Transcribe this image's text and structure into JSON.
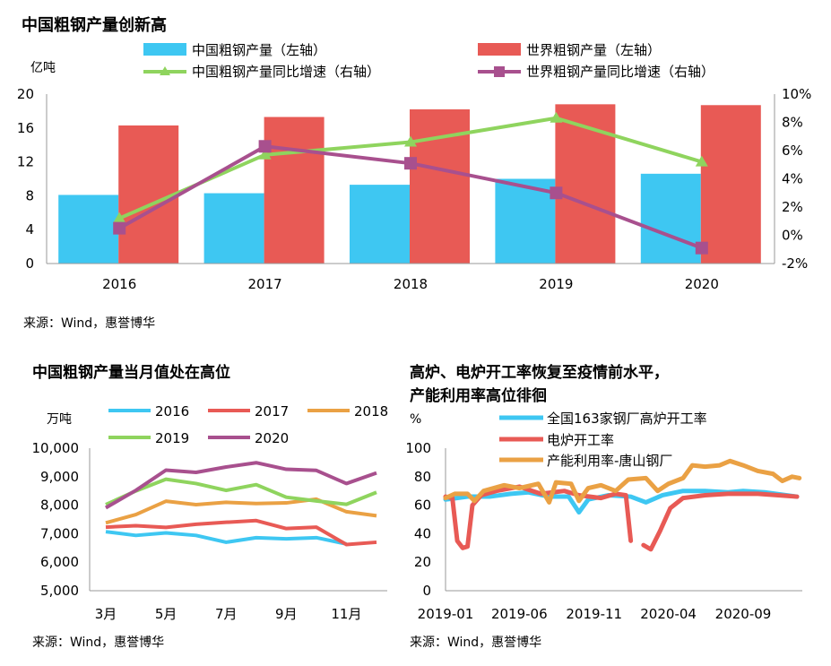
{
  "panel1": {
    "title": "中国粗钢产量创新高",
    "source": "来源：Wind，惠誉博华",
    "chart_data": {
      "type": "bar",
      "categories": [
        "2016",
        "2017",
        "2018",
        "2019",
        "2020"
      ],
      "ylabel": "亿吨",
      "ylim": [
        0,
        20
      ],
      "yticks": [
        "0",
        "4",
        "8",
        "12",
        "16",
        "20"
      ],
      "y2lim": [
        -2,
        10
      ],
      "y2ticks": [
        "-2%",
        "0%",
        "2%",
        "4%",
        "6%",
        "8%",
        "10%"
      ],
      "grid": false,
      "legend_position": "top",
      "series": [
        {
          "name": "中国粗钢产量（左轴）",
          "type": "bar",
          "axis": "left",
          "color": "#3ec7f2",
          "values": [
            8.1,
            8.3,
            9.3,
            10.0,
            10.6
          ]
        },
        {
          "name": "世界粗钢产量（左轴）",
          "type": "bar",
          "axis": "left",
          "color": "#e85a55",
          "values": [
            16.3,
            17.3,
            18.2,
            18.8,
            18.7
          ]
        },
        {
          "name": "中国粗钢产量同比增速（右轴）",
          "type": "line",
          "axis": "right",
          "color": "#8fd45e",
          "marker": "triangle",
          "values": [
            1.2,
            5.7,
            6.6,
            8.3,
            5.2
          ]
        },
        {
          "name": "世界粗钢产量同比增速（右轴）",
          "type": "line",
          "axis": "right",
          "color": "#a8508e",
          "marker": "square",
          "values": [
            0.5,
            6.3,
            5.1,
            3.0,
            -0.9
          ]
        }
      ]
    }
  },
  "panel2": {
    "title": "中国粗钢产量当月值处在高位",
    "source": "来源：Wind，惠誉博华",
    "chart_data": {
      "type": "line",
      "x": [
        3,
        4,
        5,
        6,
        7,
        8,
        9,
        10,
        11,
        12
      ],
      "xticks": [
        "3月",
        "5月",
        "7月",
        "9月",
        "11月"
      ],
      "ylabel": "万吨",
      "ylim": [
        5000,
        10000
      ],
      "yticks": [
        "5,000",
        "6,000",
        "7,000",
        "8,000",
        "9,000",
        "10,000"
      ],
      "grid": false,
      "legend_position": "top",
      "series": [
        {
          "name": "2016",
          "color": "#3ec7f2",
          "values": [
            7070,
            6940,
            7030,
            6940,
            6700,
            6860,
            6820,
            6860,
            6640,
            null
          ]
        },
        {
          "name": "2017",
          "color": "#e85a55",
          "values": [
            7230,
            7280,
            7220,
            7330,
            7400,
            7460,
            7180,
            7230,
            6620,
            6700
          ]
        },
        {
          "name": "2018",
          "color": "#eaa144",
          "values": [
            7380,
            7670,
            8140,
            8020,
            8100,
            8060,
            8080,
            8210,
            7770,
            7630
          ]
        },
        {
          "name": "2019",
          "color": "#8fd45e",
          "values": [
            8020,
            8500,
            8910,
            8760,
            8520,
            8720,
            8280,
            8150,
            8030,
            8450
          ]
        },
        {
          "name": "2020",
          "color": "#a8508e",
          "values": [
            7910,
            8520,
            9230,
            9150,
            9340,
            9490,
            9260,
            9220,
            8760,
            9130
          ]
        }
      ]
    }
  },
  "panel3": {
    "title_line1": "高炉、电炉开工率恢复至疫情前水平，",
    "title_line2": "产能利用率高位徘徊",
    "source": "来源：Wind，惠誉博华",
    "chart_data": {
      "type": "line",
      "x_start": "2019-01",
      "xticks": [
        "2019-01",
        "2019-06",
        "2019-11",
        "2020-04",
        "2020-09"
      ],
      "ylabel": "%",
      "ylim": [
        0,
        100
      ],
      "yticks": [
        "0",
        "20",
        "40",
        "60",
        "80",
        "100"
      ],
      "grid": false,
      "legend_position": "top",
      "series": [
        {
          "name": "全国163家钢厂高炉开工率",
          "color": "#3ec7f2",
          "points": [
            [
              "2019-01-01",
              64
            ],
            [
              "2019-02-15",
              66
            ],
            [
              "2019-04-01",
              66
            ],
            [
              "2019-05-15",
              68
            ],
            [
              "2019-06-20",
              69
            ],
            [
              "2019-08-01",
              66
            ],
            [
              "2019-09-10",
              66
            ],
            [
              "2019-10-01",
              55
            ],
            [
              "2019-10-20",
              64
            ],
            [
              "2019-12-01",
              67
            ],
            [
              "2020-01-15",
              66
            ],
            [
              "2020-02-15",
              62
            ],
            [
              "2020-03-20",
              67
            ],
            [
              "2020-05-01",
              70
            ],
            [
              "2020-06-15",
              70
            ],
            [
              "2020-08-01",
              69
            ],
            [
              "2020-09-01",
              70
            ],
            [
              "2020-10-15",
              69
            ],
            [
              "2020-12-20",
              66
            ]
          ]
        },
        {
          "name": "电炉开工率",
          "color": "#e85a55",
          "points": [
            [
              "2019-01-01",
              66
            ],
            [
              "2019-01-15",
              65
            ],
            [
              "2019-01-25",
              35
            ],
            [
              "2019-02-05",
              30
            ],
            [
              "2019-02-15",
              31
            ],
            [
              "2019-02-25",
              60
            ],
            [
              "2019-03-15",
              67
            ],
            [
              "2019-04-15",
              70
            ],
            [
              "2019-06-01",
              73
            ],
            [
              "2019-07-15",
              68
            ],
            [
              "2019-09-01",
              70
            ],
            [
              "2019-10-01",
              67
            ],
            [
              "2019-11-15",
              65
            ],
            [
              "2019-12-15",
              68
            ],
            [
              "2020-01-05",
              67
            ],
            [
              "2020-01-15",
              35
            ],
            [
              null,
              null
            ],
            [
              "2020-02-10",
              32
            ],
            [
              "2020-02-25",
              29
            ],
            [
              "2020-03-15",
              42
            ],
            [
              "2020-04-05",
              58
            ],
            [
              "2020-05-01",
              65
            ],
            [
              "2020-06-15",
              67
            ],
            [
              "2020-08-01",
              68
            ],
            [
              "2020-10-01",
              68
            ],
            [
              "2020-12-20",
              66
            ]
          ]
        },
        {
          "name": "产能利用率-唐山钢厂",
          "color": "#eaa144",
          "points": [
            [
              "2019-01-01",
              65
            ],
            [
              "2019-01-20",
              68
            ],
            [
              "2019-02-15",
              68
            ],
            [
              "2019-03-01",
              63
            ],
            [
              "2019-03-20",
              70
            ],
            [
              "2019-05-01",
              74
            ],
            [
              "2019-06-01",
              72
            ],
            [
              "2019-07-10",
              75
            ],
            [
              "2019-08-01",
              62
            ],
            [
              "2019-08-15",
              76
            ],
            [
              "2019-09-15",
              75
            ],
            [
              "2019-10-01",
              63
            ],
            [
              "2019-10-20",
              72
            ],
            [
              "2019-11-15",
              74
            ],
            [
              "2019-12-15",
              70
            ],
            [
              "2020-01-10",
              78
            ],
            [
              "2020-02-15",
              79
            ],
            [
              "2020-03-10",
              70
            ],
            [
              "2020-04-01",
              75
            ],
            [
              "2020-05-01",
              79
            ],
            [
              "2020-05-20",
              88
            ],
            [
              "2020-06-15",
              87
            ],
            [
              "2020-07-15",
              88
            ],
            [
              "2020-08-05",
              91
            ],
            [
              "2020-09-01",
              88
            ],
            [
              "2020-10-01",
              84
            ],
            [
              "2020-11-01",
              82
            ],
            [
              "2020-11-20",
              77
            ],
            [
              "2020-12-10",
              80
            ],
            [
              "2020-12-25",
              79
            ]
          ]
        }
      ]
    }
  }
}
